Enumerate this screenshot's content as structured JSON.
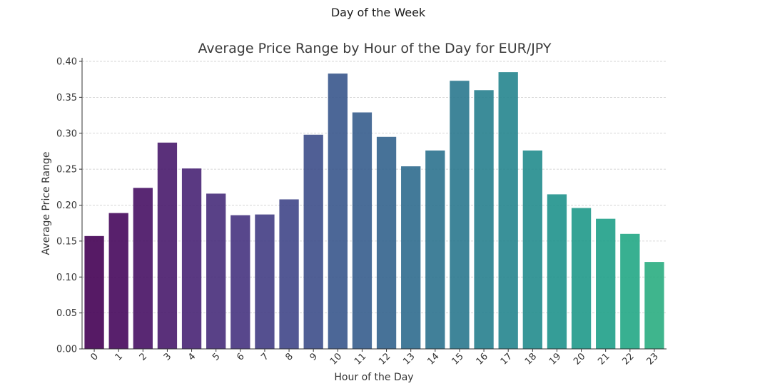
{
  "figure": {
    "suptitle": "Day of the Week"
  },
  "chart_data": {
    "type": "bar",
    "title": "Average Price Range by Hour of the Day for EUR/JPY",
    "xlabel": "Hour of the Day",
    "ylabel": "Average Price Range",
    "categories": [
      "0",
      "1",
      "2",
      "3",
      "4",
      "5",
      "6",
      "7",
      "8",
      "9",
      "10",
      "11",
      "12",
      "13",
      "14",
      "15",
      "16",
      "17",
      "18",
      "19",
      "20",
      "21",
      "22",
      "23"
    ],
    "values": [
      0.157,
      0.189,
      0.224,
      0.287,
      0.251,
      0.216,
      0.186,
      0.187,
      0.208,
      0.298,
      0.383,
      0.329,
      0.295,
      0.254,
      0.276,
      0.373,
      0.36,
      0.385,
      0.276,
      0.215,
      0.196,
      0.181,
      0.16,
      0.121
    ],
    "ylim": [
      0,
      0.4
    ],
    "yticks": [
      "0.00",
      "0.05",
      "0.10",
      "0.15",
      "0.20",
      "0.25",
      "0.30",
      "0.35",
      "0.40"
    ],
    "ytick_values": [
      0,
      0.05,
      0.1,
      0.15,
      0.2,
      0.25,
      0.3,
      0.35,
      0.4
    ],
    "grid": true,
    "grid_axis": "y",
    "palette": "viridis",
    "colors": [
      "#440154",
      "#46085c",
      "#471164",
      "#481a6c",
      "#482374",
      "#472c7a",
      "#46337f",
      "#433d84",
      "#404688",
      "#3d4e8a",
      "#39568c",
      "#365d8d",
      "#33638d",
      "#2f6b8e",
      "#2c728e",
      "#2a788e",
      "#277f8e",
      "#25858e",
      "#228c8d",
      "#1f928c",
      "#1f998a",
      "#1fa088",
      "#22a785",
      "#2aad81"
    ]
  }
}
